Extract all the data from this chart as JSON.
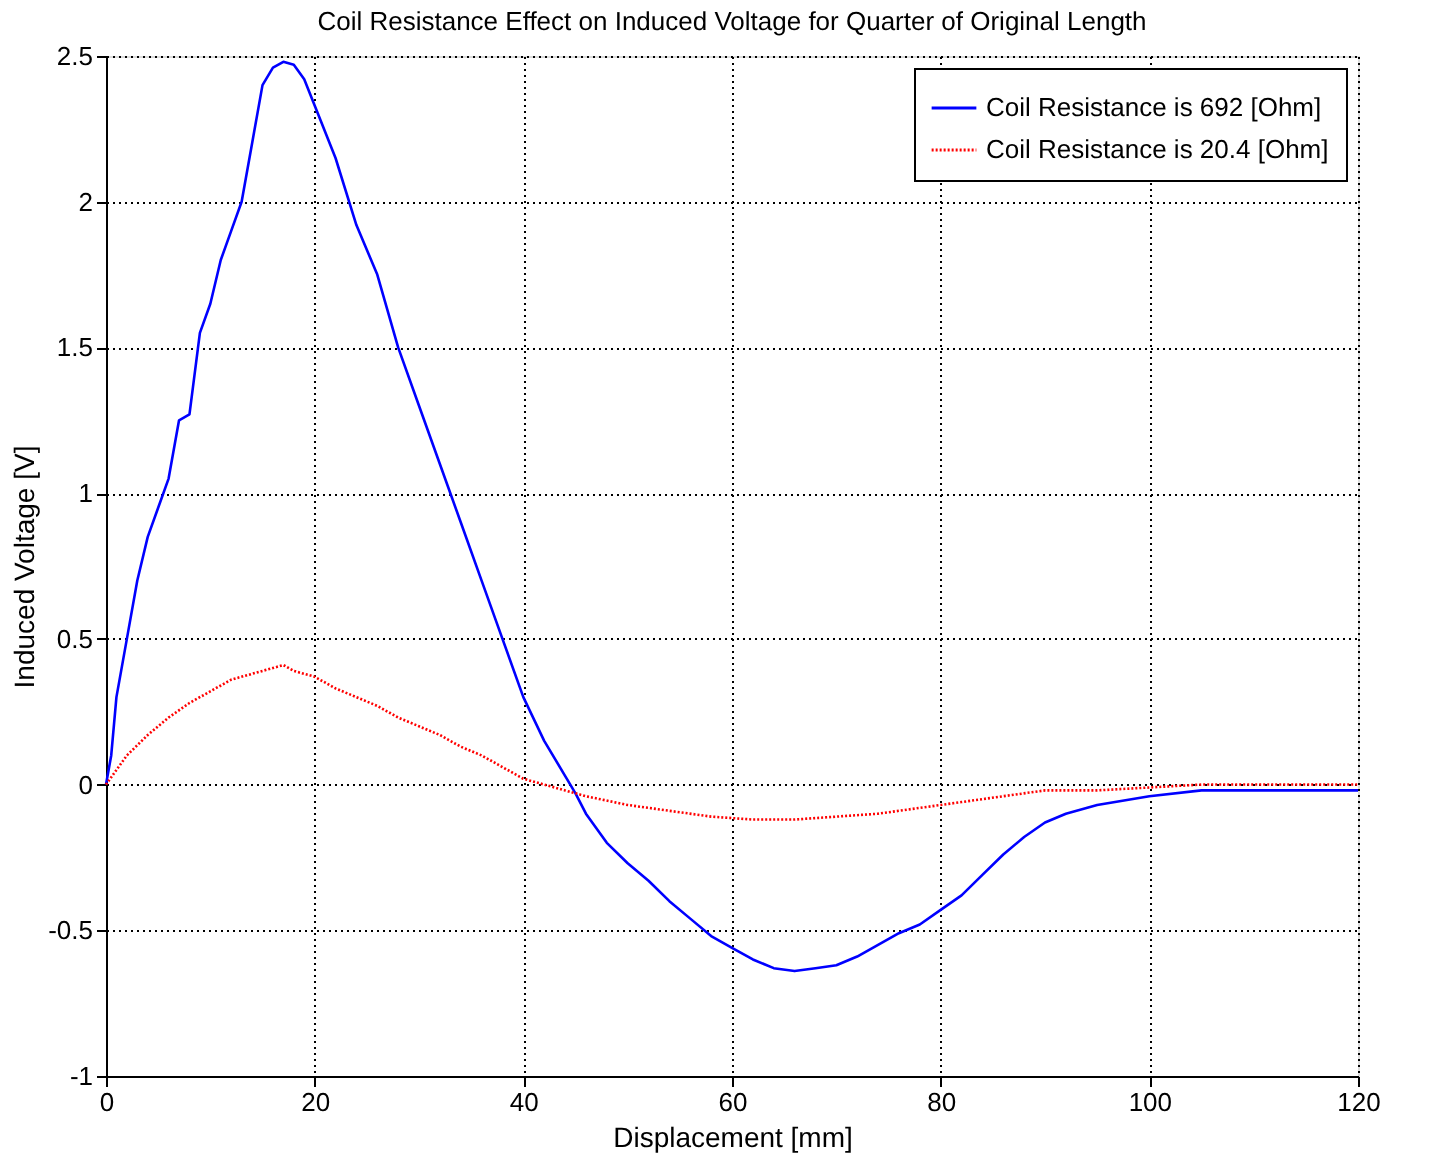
{
  "chart_data": {
    "type": "line",
    "title": "Coil Resistance Effect on Induced Voltage for Quarter of Original Length",
    "xlabel": "Displacement [mm]",
    "ylabel": "Induced Voltage [V]",
    "xlim": [
      0,
      120
    ],
    "xticks": [
      0,
      20,
      40,
      60,
      80,
      100,
      120
    ],
    "ylim": [
      -1,
      2.5
    ],
    "yticks": [
      -1,
      -0.5,
      0,
      0.5,
      1,
      1.5,
      2,
      2.5
    ],
    "grid": true,
    "legend": "top right",
    "marker": "none",
    "series": [
      {
        "name": "Coil Resistance is 692 [Ohm]",
        "color": "#0000ff",
        "line_style": "solid",
        "x": [
          0,
          0.5,
          1,
          2,
          3,
          4,
          5,
          6,
          7,
          8,
          9,
          10,
          11,
          12,
          13,
          14,
          15,
          16,
          17,
          18,
          19,
          20,
          22,
          24,
          26,
          28,
          30,
          32,
          34,
          36,
          38,
          40,
          42,
          44,
          45,
          46,
          48,
          50,
          52,
          54,
          56,
          58,
          60,
          62,
          64,
          66,
          68,
          70,
          72,
          74,
          76,
          78,
          80,
          82,
          84,
          86,
          88,
          90,
          92,
          95,
          100,
          105,
          110,
          120
        ],
        "values": [
          0,
          0.1,
          0.3,
          0.5,
          0.7,
          0.85,
          0.95,
          1.05,
          1.25,
          1.27,
          1.55,
          1.65,
          1.8,
          1.9,
          2.0,
          2.2,
          2.4,
          2.46,
          2.48,
          2.47,
          2.42,
          2.33,
          2.15,
          1.92,
          1.75,
          1.5,
          1.3,
          1.1,
          0.9,
          0.7,
          0.5,
          0.3,
          0.15,
          0.03,
          -0.03,
          -0.1,
          -0.2,
          -0.27,
          -0.33,
          -0.4,
          -0.46,
          -0.52,
          -0.56,
          -0.6,
          -0.63,
          -0.64,
          -0.63,
          -0.62,
          -0.59,
          -0.55,
          -0.51,
          -0.48,
          -0.43,
          -0.38,
          -0.31,
          -0.24,
          -0.18,
          -0.13,
          -0.1,
          -0.07,
          -0.04,
          -0.02,
          -0.02,
          -0.02
        ]
      },
      {
        "name": "Coil Resistance is 20.4 [Ohm]",
        "color": "#ff0000",
        "line_style": "dotted",
        "x": [
          0,
          2,
          4,
          6,
          8,
          10,
          12,
          14,
          16,
          17,
          18,
          20,
          22,
          24,
          26,
          28,
          30,
          32,
          34,
          36,
          38,
          40,
          42,
          44,
          46,
          50,
          54,
          58,
          62,
          66,
          70,
          74,
          78,
          82,
          86,
          90,
          95,
          100,
          105,
          120
        ],
        "values": [
          0,
          0.1,
          0.17,
          0.23,
          0.28,
          0.32,
          0.36,
          0.38,
          0.4,
          0.41,
          0.39,
          0.37,
          0.33,
          0.3,
          0.27,
          0.23,
          0.2,
          0.17,
          0.13,
          0.1,
          0.06,
          0.02,
          0.0,
          -0.02,
          -0.04,
          -0.07,
          -0.09,
          -0.11,
          -0.12,
          -0.12,
          -0.11,
          -0.1,
          -0.08,
          -0.06,
          -0.04,
          -0.02,
          -0.02,
          -0.01,
          0.0,
          0.0
        ]
      }
    ]
  }
}
